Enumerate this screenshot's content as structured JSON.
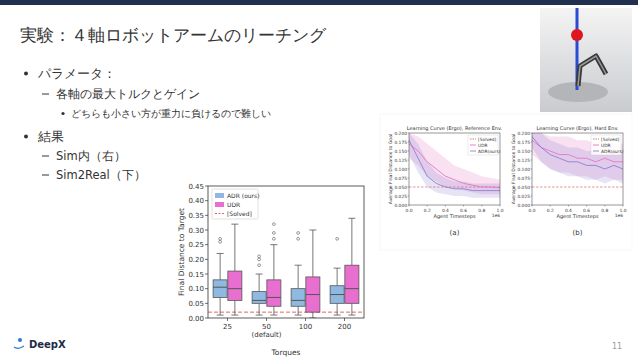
{
  "slide": {
    "title": "実験：４軸ロボットアームのリーチング",
    "bullets": [
      {
        "text": "パラメータ：",
        "level": 1
      },
      {
        "text": "各軸の最大トルクとゲイン",
        "level": 2
      },
      {
        "text": "どちらも小さい方が重力に負けるので難しい",
        "level": 3
      },
      {
        "text": "結果",
        "level": 1
      },
      {
        "text": "Sim内（右）",
        "level": 2
      },
      {
        "text": "Sim2Real（下）",
        "level": 2
      }
    ],
    "logo": "DeepX",
    "page_number": 11
  },
  "chart_data": [
    {
      "type": "box",
      "x_label": "Torques",
      "y_label": "Final Distance to Target",
      "categories": [
        "25",
        "50\n(default)",
        "100",
        "200"
      ],
      "ylim": [
        0,
        0.45
      ],
      "yticks": [
        {
          "value": 0,
          "label": "0.00"
        },
        {
          "value": 0.05,
          "label": "0.05"
        },
        {
          "value": 0.1,
          "label": "0.10"
        },
        {
          "value": 0.15,
          "label": "0.15"
        },
        {
          "value": 0.2,
          "label": "0.20"
        },
        {
          "value": 0.25,
          "label": "0.25"
        },
        {
          "value": 0.3,
          "label": "0.30"
        },
        {
          "value": 0.35,
          "label": "0.35"
        },
        {
          "value": 0.4,
          "label": "0.40"
        },
        {
          "value": 0.45,
          "label": "0.45"
        }
      ],
      "grid": false,
      "legend": "upper left",
      "series": [
        {
          "name": "ADR (ours)",
          "color": "#8fb9e0",
          "whisker_low": [
            0.01,
            0.01,
            0.01,
            0.01
          ],
          "q1": [
            0.07,
            0.05,
            0.04,
            0.05
          ],
          "median": [
            0.105,
            0.06,
            0.06,
            0.08
          ],
          "q3": [
            0.13,
            0.09,
            0.1,
            0.11
          ],
          "whisker_high": [
            0.22,
            0.15,
            0.18,
            0.17
          ],
          "outliers": [
            [
              0.26,
              0.27
            ],
            [
              0.18,
              0.2,
              0.21
            ],
            [
              0.27,
              0.29
            ],
            [
              0.27
            ]
          ]
        },
        {
          "name": "UDR",
          "color": "#e86fd0",
          "whisker_low": [
            0.01,
            0.01,
            0.0,
            0.01
          ],
          "q1": [
            0.06,
            0.04,
            0.02,
            0.05
          ],
          "median": [
            0.1,
            0.07,
            0.08,
            0.1
          ],
          "q3": [
            0.16,
            0.13,
            0.14,
            0.18
          ],
          "whisker_high": [
            0.32,
            0.25,
            0.3,
            0.34
          ],
          "outliers": [
            [],
            [
              0.27,
              0.29,
              0.32
            ],
            [],
            []
          ]
        }
      ],
      "reference_lines": [
        {
          "name": "[Solved]",
          "value": 0.02,
          "color": "#e06666",
          "line_style": "dashed"
        }
      ]
    },
    {
      "type": "line",
      "title": "Learning Curve (Ergo), Reference Env.",
      "caption": "(a)",
      "x_label": "Agent Timesteps",
      "y_label": "Average Final Distance to Goal",
      "x_offset_label": "1e6",
      "x": [
        0,
        0.1,
        0.2,
        0.3,
        0.4,
        0.5,
        0.6,
        0.7,
        0.8,
        0.9,
        1.0
      ],
      "xlim": [
        0,
        1.0
      ],
      "xticks": [
        {
          "value": 0,
          "label": "0.0"
        },
        {
          "value": 0.2,
          "label": "0.2"
        },
        {
          "value": 0.4,
          "label": "0.4"
        },
        {
          "value": 0.6,
          "label": "0.6"
        },
        {
          "value": 0.8,
          "label": "0.8"
        },
        {
          "value": 1.0,
          "label": "1.0"
        }
      ],
      "ylim": [
        0,
        0.2
      ],
      "yticks": [
        {
          "value": 0,
          "label": "0.000"
        },
        {
          "value": 0.025,
          "label": "0.025"
        },
        {
          "value": 0.05,
          "label": "0.050"
        },
        {
          "value": 0.075,
          "label": "0.075"
        },
        {
          "value": 0.1,
          "label": "0.100"
        },
        {
          "value": 0.125,
          "label": "0.125"
        },
        {
          "value": 0.15,
          "label": "0.150"
        },
        {
          "value": 0.175,
          "label": "0.175"
        },
        {
          "value": 0.2,
          "label": "0.200"
        }
      ],
      "legend": "upper right",
      "series": [
        {
          "name": "[Solved]",
          "color": "#e06666",
          "line_style": "dashed",
          "values": [
            0.05,
            0.05,
            0.05,
            0.05,
            0.05,
            0.05,
            0.05,
            0.05,
            0.05,
            0.05,
            0.05
          ]
        },
        {
          "name": "UDR",
          "color": "#e377c2",
          "line_style": "solid",
          "values": [
            0.17,
            0.15,
            0.12,
            0.1,
            0.08,
            0.07,
            0.06,
            0.055,
            0.05,
            0.05,
            0.048
          ],
          "lower": [
            0.13,
            0.11,
            0.08,
            0.065,
            0.05,
            0.045,
            0.04,
            0.035,
            0.03,
            0.03,
            0.03
          ],
          "upper": [
            0.2,
            0.19,
            0.17,
            0.15,
            0.13,
            0.11,
            0.1,
            0.09,
            0.08,
            0.075,
            0.07
          ]
        },
        {
          "name": "ADR(ours)",
          "color": "#8c7fd0",
          "line_style": "solid",
          "values": [
            0.18,
            0.13,
            0.08,
            0.06,
            0.05,
            0.045,
            0.045,
            0.04,
            0.04,
            0.04,
            0.04
          ],
          "lower": [
            0.14,
            0.09,
            0.05,
            0.035,
            0.03,
            0.025,
            0.025,
            0.02,
            0.02,
            0.02,
            0.02
          ],
          "upper": [
            0.2,
            0.17,
            0.12,
            0.09,
            0.075,
            0.065,
            0.065,
            0.06,
            0.06,
            0.06,
            0.06
          ]
        }
      ]
    },
    {
      "type": "line",
      "title": "Learning Curve (Ergo), Hard Env.",
      "caption": "(b)",
      "x_label": "Agent Timesteps",
      "y_label": "Average Final Distance to Goal",
      "x_offset_label": "1e6",
      "x": [
        0,
        0.1,
        0.2,
        0.3,
        0.4,
        0.5,
        0.6,
        0.7,
        0.8,
        0.9,
        1.0
      ],
      "xlim": [
        0,
        1.0
      ],
      "xticks": [
        {
          "value": 0,
          "label": "0.0"
        },
        {
          "value": 0.2,
          "label": "0.2"
        },
        {
          "value": 0.4,
          "label": "0.4"
        },
        {
          "value": 0.6,
          "label": "0.6"
        },
        {
          "value": 0.8,
          "label": "0.8"
        },
        {
          "value": 1.0,
          "label": "1.0"
        }
      ],
      "ylim": [
        0,
        0.2
      ],
      "yticks": [
        {
          "value": 0,
          "label": "0.000"
        },
        {
          "value": 0.025,
          "label": "0.025"
        },
        {
          "value": 0.05,
          "label": "0.050"
        },
        {
          "value": 0.075,
          "label": "0.075"
        },
        {
          "value": 0.1,
          "label": "0.100"
        },
        {
          "value": 0.125,
          "label": "0.125"
        },
        {
          "value": 0.15,
          "label": "0.150"
        },
        {
          "value": 0.175,
          "label": "0.175"
        },
        {
          "value": 0.2,
          "label": "0.200"
        }
      ],
      "legend": "upper right",
      "series": [
        {
          "name": "[Solved]",
          "color": "#e06666",
          "line_style": "dashed",
          "values": [
            0.05,
            0.05,
            0.05,
            0.05,
            0.05,
            0.05,
            0.05,
            0.05,
            0.05,
            0.05,
            0.05
          ]
        },
        {
          "name": "UDR",
          "color": "#e377c2",
          "line_style": "solid",
          "values": [
            0.18,
            0.16,
            0.15,
            0.14,
            0.14,
            0.13,
            0.13,
            0.12,
            0.13,
            0.12,
            0.12
          ],
          "lower": [
            0.14,
            0.12,
            0.1,
            0.09,
            0.09,
            0.08,
            0.08,
            0.07,
            0.08,
            0.07,
            0.07
          ],
          "upper": [
            0.2,
            0.2,
            0.19,
            0.19,
            0.19,
            0.18,
            0.18,
            0.17,
            0.18,
            0.17,
            0.17
          ]
        },
        {
          "name": "ADR(ours)",
          "color": "#8c7fd0",
          "line_style": "solid",
          "values": [
            0.19,
            0.16,
            0.14,
            0.13,
            0.12,
            0.12,
            0.11,
            0.11,
            0.1,
            0.11,
            0.1
          ],
          "lower": [
            0.16,
            0.12,
            0.1,
            0.09,
            0.08,
            0.08,
            0.07,
            0.07,
            0.06,
            0.07,
            0.06
          ],
          "upper": [
            0.2,
            0.2,
            0.18,
            0.17,
            0.16,
            0.16,
            0.15,
            0.15,
            0.14,
            0.15,
            0.14
          ]
        }
      ]
    }
  ]
}
